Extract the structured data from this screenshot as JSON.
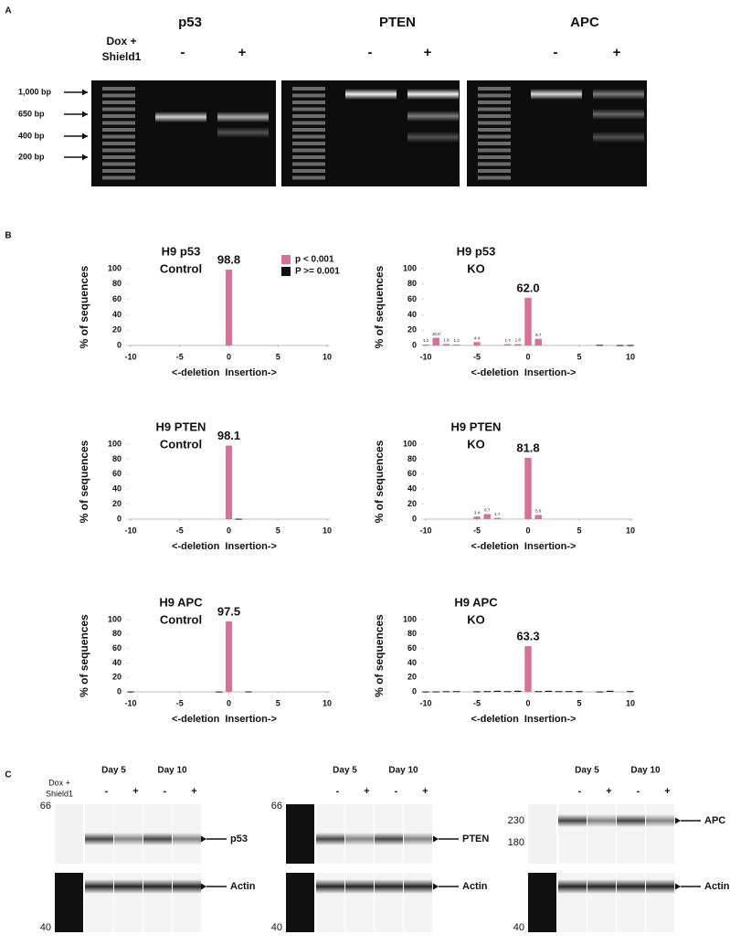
{
  "panel_a": {
    "letter": "A",
    "titles": [
      "p53",
      "PTEN",
      "APC"
    ],
    "treatment": [
      "Dox +",
      "Shield1"
    ],
    "lanes": [
      "-",
      "+",
      "-",
      "+",
      "-",
      "+"
    ],
    "ladder": [
      "1,000 bp",
      "650 bp",
      "400 bp",
      "200 bp"
    ]
  },
  "panel_b": {
    "letter": "B"
  },
  "chart_data": [
    {
      "type": "bar",
      "title": [
        "H9 p53",
        "Control"
      ],
      "ylabel": "% of sequences",
      "xlabel": "<-deletion  Insertion->",
      "x": [
        -10,
        -9,
        -8,
        -7,
        -6,
        -5,
        -4,
        -3,
        -2,
        -1,
        0,
        1,
        2,
        3,
        4,
        5,
        6,
        7,
        8,
        9,
        10
      ],
      "xlim": [
        -10,
        10
      ],
      "xticks": [
        -10,
        -5,
        0,
        5,
        10
      ],
      "ylim": [
        0,
        100
      ],
      "yticks": [
        0,
        20,
        40,
        60,
        80,
        100
      ],
      "legend": "top-right",
      "series": [
        {
          "name": "p < 0.001",
          "color": "#d6719a",
          "values": [
            null,
            null,
            null,
            null,
            null,
            null,
            null,
            null,
            null,
            null,
            98.8,
            null,
            null,
            null,
            null,
            null,
            null,
            null,
            null,
            null,
            null
          ],
          "value_labels": [
            null,
            null,
            null,
            null,
            null,
            null,
            null,
            null,
            null,
            null,
            "98.8",
            null,
            null,
            null,
            null,
            null,
            null,
            null,
            null,
            null,
            null
          ]
        },
        {
          "name": "P >= 0.001",
          "color": "#111111",
          "values": [
            null,
            null,
            null,
            null,
            null,
            null,
            null,
            null,
            null,
            null,
            null,
            null,
            null,
            null,
            null,
            null,
            null,
            null,
            null,
            null,
            null
          ]
        }
      ]
    },
    {
      "type": "bar",
      "title": [
        "H9 p53",
        "KO"
      ],
      "ylabel": "% of sequences",
      "xlabel": "<-deletion  Insertion->",
      "x": [
        -10,
        -9,
        -8,
        -7,
        -6,
        -5,
        -4,
        -3,
        -2,
        -1,
        0,
        1,
        2,
        3,
        4,
        5,
        6,
        7,
        8,
        9,
        10
      ],
      "xlim": [
        -10,
        10
      ],
      "xticks": [
        -10,
        -5,
        0,
        5,
        10
      ],
      "ylim": [
        0,
        100
      ],
      "yticks": [
        0,
        20,
        40,
        60,
        80,
        100
      ],
      "series": [
        {
          "color": "#d6719a",
          "values": [
            1.2,
            10.0,
            1.9,
            1.2,
            null,
            4.4,
            null,
            null,
            1.7,
            1.8,
            62.0,
            8.7,
            null,
            null,
            null,
            null,
            null,
            null,
            null,
            null,
            null
          ],
          "value_labels": [
            "1.2",
            "10.0",
            "1.9",
            "1.2",
            null,
            "4.4",
            null,
            null,
            "1.7",
            "1.8",
            "62.0",
            "8.7",
            null,
            null,
            null,
            null,
            null,
            null,
            null,
            null,
            null
          ]
        },
        {
          "color": "#111111",
          "values": [
            null,
            null,
            null,
            null,
            null,
            null,
            null,
            null,
            null,
            null,
            null,
            null,
            null,
            null,
            null,
            null,
            null,
            0.8,
            null,
            0.5,
            0.6
          ]
        }
      ]
    },
    {
      "type": "bar",
      "title": [
        "H9 PTEN",
        "Control"
      ],
      "ylabel": "% of sequences",
      "xlabel": "<-deletion  Insertion->",
      "x": [
        -10,
        -9,
        -8,
        -7,
        -6,
        -5,
        -4,
        -3,
        -2,
        -1,
        0,
        1,
        2,
        3,
        4,
        5,
        6,
        7,
        8,
        9,
        10
      ],
      "xlim": [
        -10,
        10
      ],
      "xticks": [
        -10,
        -5,
        0,
        5,
        10
      ],
      "ylim": [
        0,
        100
      ],
      "yticks": [
        0,
        20,
        40,
        60,
        80,
        100
      ],
      "series": [
        {
          "color": "#d6719a",
          "values": [
            null,
            null,
            null,
            null,
            null,
            null,
            null,
            null,
            null,
            null,
            98.1,
            null,
            null,
            null,
            null,
            null,
            null,
            null,
            null,
            null,
            null
          ],
          "value_labels": [
            null,
            null,
            null,
            null,
            null,
            null,
            null,
            null,
            null,
            null,
            "98.1",
            null,
            null,
            null,
            null,
            null,
            null,
            null,
            null,
            null,
            null
          ]
        },
        {
          "color": "#111111",
          "values": [
            null,
            null,
            null,
            null,
            null,
            null,
            null,
            null,
            null,
            null,
            null,
            0.5,
            null,
            null,
            null,
            null,
            null,
            null,
            null,
            null,
            null
          ]
        }
      ]
    },
    {
      "type": "bar",
      "title": [
        "H9 PTEN",
        "KO"
      ],
      "ylabel": "% of sequences",
      "xlabel": "<-deletion  Insertion->",
      "x": [
        -10,
        -9,
        -8,
        -7,
        -6,
        -5,
        -4,
        -3,
        -2,
        -1,
        0,
        1,
        2,
        3,
        4,
        5,
        6,
        7,
        8,
        9,
        10
      ],
      "xlim": [
        -10,
        10
      ],
      "xticks": [
        -10,
        -5,
        0,
        5,
        10
      ],
      "ylim": [
        0,
        100
      ],
      "yticks": [
        0,
        20,
        40,
        60,
        80,
        100
      ],
      "series": [
        {
          "color": "#d6719a",
          "values": [
            null,
            null,
            null,
            null,
            null,
            3.4,
            6.7,
            1.7,
            null,
            null,
            81.8,
            5.6,
            null,
            null,
            null,
            null,
            null,
            null,
            null,
            null,
            null
          ],
          "value_labels": [
            null,
            null,
            null,
            null,
            null,
            "3.4",
            "6.7",
            "1.7",
            null,
            null,
            "81.8",
            "5.6",
            null,
            null,
            null,
            null,
            null,
            null,
            null,
            null,
            null
          ]
        },
        {
          "color": "#111111",
          "values": [
            null,
            null,
            null,
            null,
            null,
            null,
            null,
            null,
            null,
            null,
            null,
            null,
            null,
            null,
            null,
            null,
            null,
            null,
            null,
            null,
            null
          ]
        }
      ]
    },
    {
      "type": "bar",
      "title": [
        "H9 APC",
        "Control"
      ],
      "ylabel": "% of sequences",
      "xlabel": "<-deletion  Insertion->",
      "x": [
        -10,
        -9,
        -8,
        -7,
        -6,
        -5,
        -4,
        -3,
        -2,
        -1,
        0,
        1,
        2,
        3,
        4,
        5,
        6,
        7,
        8,
        9,
        10
      ],
      "xlim": [
        -10,
        10
      ],
      "xticks": [
        -10,
        -5,
        0,
        5,
        10
      ],
      "ylim": [
        0,
        100
      ],
      "yticks": [
        0,
        20,
        40,
        60,
        80,
        100
      ],
      "series": [
        {
          "color": "#d6719a",
          "values": [
            null,
            null,
            null,
            null,
            null,
            null,
            null,
            null,
            null,
            null,
            97.5,
            null,
            null,
            null,
            null,
            null,
            null,
            null,
            null,
            null,
            null
          ],
          "value_labels": [
            null,
            null,
            null,
            null,
            null,
            null,
            null,
            null,
            null,
            null,
            "97.5",
            null,
            null,
            null,
            null,
            null,
            null,
            null,
            null,
            null,
            null
          ]
        },
        {
          "color": "#111111",
          "values": [
            0.5,
            null,
            null,
            null,
            null,
            null,
            null,
            null,
            null,
            0.4,
            null,
            null,
            0.6,
            null,
            null,
            null,
            null,
            null,
            null,
            null,
            null
          ]
        }
      ]
    },
    {
      "type": "bar",
      "title": [
        "H9 APC",
        "KO"
      ],
      "ylabel": "% of sequences",
      "xlabel": "<-deletion  Insertion->",
      "x": [
        -10,
        -9,
        -8,
        -7,
        -6,
        -5,
        -4,
        -3,
        -2,
        -1,
        0,
        1,
        2,
        3,
        4,
        5,
        6,
        7,
        8,
        9,
        10
      ],
      "xlim": [
        -10,
        10
      ],
      "xticks": [
        -10,
        -5,
        0,
        5,
        10
      ],
      "ylim": [
        0,
        100
      ],
      "yticks": [
        0,
        20,
        40,
        60,
        80,
        100
      ],
      "series": [
        {
          "color": "#d6719a",
          "values": [
            null,
            null,
            null,
            null,
            null,
            null,
            null,
            null,
            null,
            null,
            63.3,
            null,
            null,
            null,
            null,
            null,
            null,
            null,
            null,
            null,
            null
          ],
          "value_labels": [
            null,
            null,
            null,
            null,
            null,
            null,
            null,
            null,
            null,
            null,
            "63.3",
            null,
            null,
            null,
            null,
            null,
            null,
            null,
            null,
            null,
            null
          ]
        },
        {
          "color": "#111111",
          "values": [
            0.5,
            0.6,
            0.8,
            1.0,
            null,
            0.8,
            1.0,
            1.5,
            1.0,
            1.5,
            null,
            1.0,
            1.5,
            1.0,
            1.0,
            1.0,
            null,
            0.5,
            1.5,
            null,
            1.0
          ]
        }
      ]
    }
  ],
  "panel_c": {
    "letter": "C",
    "treatment": [
      "Dox +",
      "Shield1"
    ],
    "blots": [
      {
        "days": [
          "Day 5",
          "Day 10"
        ],
        "lanes": [
          "-",
          "+",
          "-",
          "+"
        ],
        "markers": [
          "66",
          "40"
        ],
        "target": "p53",
        "control": "Actin"
      },
      {
        "days": [
          "Day 5",
          "Day 10"
        ],
        "lanes": [
          "-",
          "+",
          "-",
          "+"
        ],
        "markers": [
          "66",
          "40"
        ],
        "target": "PTEN",
        "control": "Actin"
      },
      {
        "days": [
          "Day 5",
          "Day 10"
        ],
        "lanes": [
          "-",
          "+",
          "-",
          "+"
        ],
        "markers": [
          "230",
          "180",
          "40"
        ],
        "target": "APC",
        "control": "Actin"
      }
    ]
  }
}
